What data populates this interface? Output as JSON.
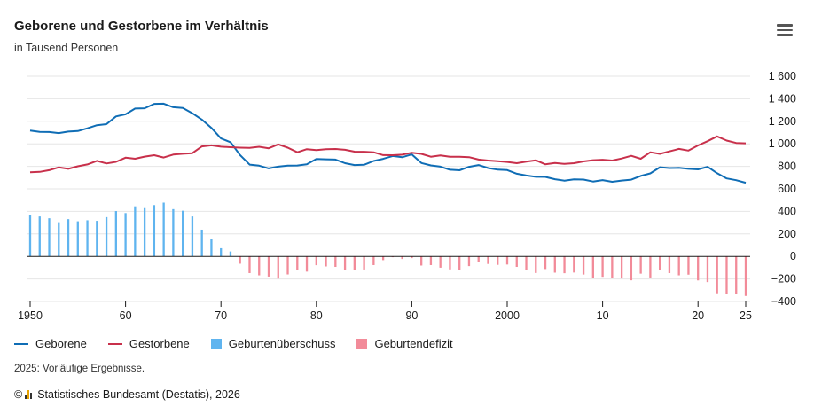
{
  "header": {
    "title": "Geborene und Gestorbene im Verhältnis",
    "subtitle": "in Tausend Personen"
  },
  "menu": {
    "icon": "hamburger-menu-icon"
  },
  "legend": {
    "items": [
      {
        "label": "Geborene",
        "kind": "line",
        "color": "#0f6db5"
      },
      {
        "label": "Gestorbene",
        "kind": "line",
        "color": "#c8304b"
      },
      {
        "label": "Geburtenüberschuss",
        "kind": "box",
        "color": "#5fb4ef"
      },
      {
        "label": "Geburtendefizit",
        "kind": "box",
        "color": "#f28b99"
      }
    ]
  },
  "footer": {
    "note": "2025: Vorläufige Ergebnisse.",
    "copyright": "©",
    "source": "Statistisches Bundesamt (Destatis), 2026"
  },
  "chart_data": {
    "type": "line",
    "title": "Geborene und Gestorbene im Verhältnis",
    "subtitle": "in Tausend Personen",
    "y_unit": "Tausend Personen",
    "ylim": [
      -400,
      1600
    ],
    "y_ticks": [
      {
        "value": 1600,
        "label": "1 600"
      },
      {
        "value": 1400,
        "label": "1 400"
      },
      {
        "value": 1200,
        "label": "1 200"
      },
      {
        "value": 1000,
        "label": "1 000"
      },
      {
        "value": 800,
        "label": "800"
      },
      {
        "value": 600,
        "label": "600"
      },
      {
        "value": 400,
        "label": "400"
      },
      {
        "value": 200,
        "label": "200"
      },
      {
        "value": 0,
        "label": "0"
      },
      {
        "value": -200,
        "label": "−200"
      },
      {
        "value": -400,
        "label": "−400"
      }
    ],
    "xlim": [
      1950,
      2025
    ],
    "x_ticks": [
      {
        "value": 1950,
        "label": "1950"
      },
      {
        "value": 1960,
        "label": "60"
      },
      {
        "value": 1970,
        "label": "70"
      },
      {
        "value": 1980,
        "label": "80"
      },
      {
        "value": 1990,
        "label": "90"
      },
      {
        "value": 2000,
        "label": "2000"
      },
      {
        "value": 2010,
        "label": "10"
      },
      {
        "value": 2020,
        "label": "20"
      },
      {
        "value": 2025,
        "label": "25"
      }
    ],
    "grid": true,
    "legend_position": "bottom",
    "x": [
      1950,
      1951,
      1952,
      1953,
      1954,
      1955,
      1956,
      1957,
      1958,
      1959,
      1960,
      1961,
      1962,
      1963,
      1964,
      1965,
      1966,
      1967,
      1968,
      1969,
      1970,
      1971,
      1972,
      1973,
      1974,
      1975,
      1976,
      1977,
      1978,
      1979,
      1980,
      1981,
      1982,
      1983,
      1984,
      1985,
      1986,
      1987,
      1988,
      1989,
      1990,
      1991,
      1992,
      1993,
      1994,
      1995,
      1996,
      1997,
      1998,
      1999,
      2000,
      2001,
      2002,
      2003,
      2004,
      2005,
      2006,
      2007,
      2008,
      2009,
      2010,
      2011,
      2012,
      2013,
      2014,
      2015,
      2016,
      2017,
      2018,
      2019,
      2020,
      2021,
      2022,
      2023,
      2024,
      2025
    ],
    "series": [
      {
        "name": "Geborene",
        "type": "line",
        "color": "#0f6db5",
        "values": [
          1117,
          1106,
          1105,
          1095,
          1109,
          1113,
          1138,
          1165,
          1175,
          1243,
          1262,
          1313,
          1316,
          1355,
          1357,
          1325,
          1318,
          1272,
          1215,
          1142,
          1048,
          1014,
          901,
          816,
          806,
          782,
          798,
          806,
          808,
          818,
          866,
          863,
          861,
          828,
          812,
          814,
          848,
          867,
          892,
          881,
          906,
          830,
          809,
          798,
          770,
          765,
          796,
          812,
          785,
          771,
          767,
          735,
          719,
          707,
          706,
          686,
          673,
          685,
          683,
          665,
          678,
          663,
          674,
          682,
          715,
          738,
          792,
          785,
          787,
          778,
          773,
          796,
          739,
          693,
          677,
          654
        ]
      },
      {
        "name": "Gestorbene",
        "type": "line",
        "color": "#c8304b",
        "values": [
          748,
          751,
          766,
          791,
          778,
          801,
          817,
          849,
          826,
          840,
          877,
          868,
          887,
          899,
          879,
          905,
          912,
          917,
          977,
          987,
          975,
          970,
          966,
          964,
          974,
          961,
          995,
          966,
          925,
          953,
          944,
          952,
          954,
          947,
          931,
          930,
          925,
          900,
          899,
          904,
          921,
          911,
          886,
          898,
          885,
          885,
          882,
          861,
          852,
          846,
          839,
          828,
          842,
          854,
          818,
          830,
          822,
          828,
          844,
          855,
          859,
          852,
          870,
          894,
          868,
          925,
          911,
          933,
          955,
          940,
          986,
          1024,
          1066,
          1029,
          1008,
          1005
        ]
      },
      {
        "name": "Geburtenüberschuss",
        "type": "bar",
        "color": "#5fb4ef",
        "values": [
          369,
          355,
          339,
          304,
          331,
          312,
          321,
          316,
          349,
          403,
          385,
          445,
          429,
          456,
          478,
          420,
          406,
          355,
          238,
          155,
          73,
          44,
          0,
          0,
          0,
          0,
          0,
          0,
          0,
          0,
          0,
          0,
          0,
          0,
          0,
          0,
          0,
          0,
          0,
          0,
          0,
          0,
          0,
          0,
          0,
          0,
          0,
          0,
          0,
          0,
          0,
          0,
          0,
          0,
          0,
          0,
          0,
          0,
          0,
          0,
          0,
          0,
          0,
          0,
          0,
          0,
          0,
          0,
          0,
          0,
          0,
          0,
          0,
          0,
          0,
          0
        ]
      },
      {
        "name": "Geburtendefizit",
        "type": "bar",
        "color": "#f28b99",
        "values": [
          0,
          0,
          0,
          0,
          0,
          0,
          0,
          0,
          0,
          0,
          0,
          0,
          0,
          0,
          0,
          0,
          0,
          0,
          0,
          0,
          0,
          0,
          -65,
          -148,
          -168,
          -179,
          -197,
          -160,
          -117,
          -135,
          -78,
          -89,
          -93,
          -119,
          -119,
          -116,
          -77,
          -33,
          -7,
          -23,
          -15,
          -81,
          -77,
          -100,
          -115,
          -120,
          -86,
          -49,
          -67,
          -75,
          -72,
          -93,
          -123,
          -147,
          -112,
          -144,
          -149,
          -143,
          -161,
          -190,
          -181,
          -189,
          -196,
          -212,
          -153,
          -187,
          -119,
          -148,
          -168,
          -162,
          -213,
          -228,
          -327,
          -336,
          -331,
          -351
        ]
      }
    ]
  }
}
